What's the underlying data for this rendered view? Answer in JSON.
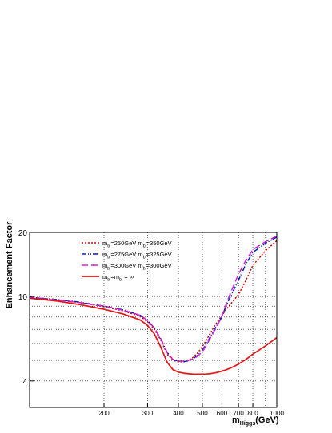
{
  "chart_data": {
    "type": "line",
    "title": "",
    "xlabel": "m",
    "xlabel_sub": "Higgs",
    "xlabel_unit": "(GeV)",
    "ylabel": "Enhancement Factor",
    "xscale": "log",
    "yscale": "log",
    "xlim": [
      100,
      1000
    ],
    "ylim": [
      3,
      20
    ],
    "x_tick_labels": [
      {
        "value": 200,
        "label": "200"
      },
      {
        "value": 300,
        "label": "300"
      },
      {
        "value": 400,
        "label": "400"
      },
      {
        "value": 500,
        "label": "500"
      },
      {
        "value": 600,
        "label": "600"
      },
      {
        "value": 700,
        "label": "700"
      },
      {
        "value": 800,
        "label": "800"
      },
      {
        "value": 1000,
        "label": "1000"
      }
    ],
    "x_grid": [
      200,
      300,
      400,
      500,
      600,
      700,
      800,
      900
    ],
    "y_tick_labels": [
      {
        "value": 4,
        "label": "4"
      },
      {
        "value": 10,
        "label": "10"
      },
      {
        "value": 20,
        "label": "20"
      }
    ],
    "y_grid": [
      4,
      5,
      6,
      7,
      8,
      9,
      10
    ],
    "grid": true,
    "legend_position": "top-left",
    "series": [
      {
        "name": {
          "m": "m",
          "sub1": "b'",
          "mid": "=250GeV m",
          "sub2": "b'",
          "end": "=350GeV"
        },
        "color": "#d40000",
        "dash": "2,2",
        "x": [
          100,
          130,
          160,
          200,
          240,
          280,
          300,
          320,
          340,
          360,
          380,
          400,
          420,
          440,
          460,
          480,
          500,
          520,
          540,
          560,
          580,
          600,
          620,
          650,
          700,
          750,
          800,
          900,
          1000
        ],
        "y": [
          9.9,
          9.65,
          9.35,
          8.95,
          8.55,
          8.05,
          7.6,
          7.0,
          6.2,
          5.35,
          5.0,
          4.92,
          4.92,
          5.0,
          5.18,
          5.45,
          5.8,
          6.25,
          6.75,
          7.25,
          7.7,
          8.1,
          8.6,
          9.2,
          10.2,
          11.9,
          14.0,
          16.4,
          18.3
        ]
      },
      {
        "name": {
          "m": "m",
          "sub1": "b'",
          "mid": "=275GeV m",
          "sub2": "b'",
          "end": "=325GeV"
        },
        "color": "#0a1fbf",
        "dash": "6,2,1,2,1,2",
        "x": [
          100,
          130,
          160,
          200,
          240,
          280,
          300,
          320,
          340,
          360,
          380,
          400,
          420,
          440,
          460,
          480,
          500,
          520,
          540,
          560,
          580,
          600,
          620,
          650,
          700,
          750,
          800,
          900,
          1000
        ],
        "y": [
          9.9,
          9.65,
          9.4,
          9.0,
          8.65,
          8.15,
          7.7,
          7.1,
          6.3,
          5.45,
          5.05,
          4.95,
          4.93,
          4.98,
          5.1,
          5.3,
          5.6,
          6.0,
          6.5,
          7.0,
          7.5,
          8.0,
          8.9,
          10.0,
          11.9,
          14.2,
          16.1,
          17.8,
          19.0
        ]
      },
      {
        "name": {
          "m": "m",
          "sub1": "b'",
          "mid": "=300GeV m",
          "sub2": "b'",
          "end": "=300GeV"
        },
        "color": "#cc22cc",
        "dash": "8,4",
        "x": [
          100,
          130,
          160,
          200,
          240,
          280,
          300,
          320,
          340,
          360,
          380,
          400,
          420,
          440,
          460,
          480,
          500,
          520,
          540,
          560,
          580,
          600,
          620,
          650,
          700,
          750,
          800,
          900,
          1000
        ],
        "y": [
          9.85,
          9.6,
          9.35,
          9.0,
          8.6,
          8.15,
          7.7,
          7.1,
          6.3,
          5.45,
          5.05,
          4.97,
          4.95,
          5.0,
          5.08,
          5.25,
          5.5,
          5.9,
          6.4,
          6.9,
          7.45,
          8.1,
          9.0,
          10.4,
          12.7,
          14.8,
          16.6,
          18.1,
          19.2
        ]
      },
      {
        "name": {
          "m": "m",
          "sub1": "b'",
          "mid": "=m",
          "sub2": "b'",
          "end": " = ∞"
        },
        "color": "#e31414",
        "dash": "",
        "x": [
          100,
          130,
          160,
          200,
          240,
          280,
          300,
          320,
          340,
          360,
          380,
          400,
          420,
          440,
          460,
          480,
          500,
          520,
          540,
          560,
          580,
          600,
          620,
          650,
          700,
          750,
          800,
          900,
          1000
        ],
        "y": [
          9.8,
          9.5,
          9.15,
          8.7,
          8.25,
          7.75,
          7.3,
          6.65,
          5.75,
          4.9,
          4.52,
          4.4,
          4.35,
          4.32,
          4.3,
          4.3,
          4.3,
          4.31,
          4.33,
          4.36,
          4.4,
          4.45,
          4.5,
          4.6,
          4.8,
          5.05,
          5.35,
          5.85,
          6.4
        ]
      }
    ]
  }
}
